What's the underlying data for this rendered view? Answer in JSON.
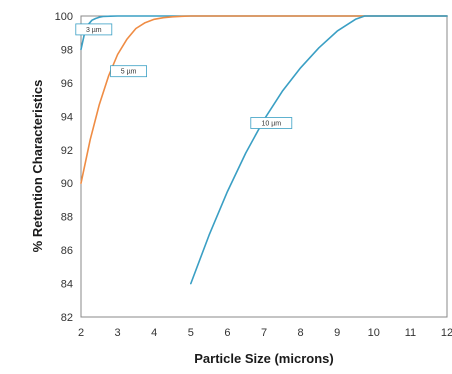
{
  "chart_data": {
    "type": "line",
    "xlabel": "Particle Size (microns)",
    "ylabel": "% Retention Characteristics",
    "xlim": [
      2,
      12
    ],
    "ylim": [
      82,
      100
    ],
    "x_ticks": [
      2,
      3,
      4,
      5,
      6,
      7,
      8,
      9,
      10,
      11,
      12
    ],
    "y_ticks": [
      82,
      84,
      86,
      88,
      90,
      92,
      94,
      96,
      98,
      100
    ],
    "grid": false,
    "series": [
      {
        "name": "3 µm",
        "color": "#3a9fc4",
        "x": [
          2.0,
          2.1,
          2.2,
          2.3,
          2.4,
          2.5,
          2.6,
          2.8,
          3.0,
          12.0
        ],
        "y": [
          98.0,
          99.0,
          99.5,
          99.75,
          99.85,
          99.93,
          99.97,
          99.99,
          100.0,
          100.0
        ]
      },
      {
        "name": "5 µm",
        "color": "#ef8c44",
        "x": [
          2.0,
          2.25,
          2.5,
          2.75,
          3.0,
          3.25,
          3.5,
          3.75,
          4.0,
          4.25,
          4.5,
          4.75,
          5.0,
          12.0
        ],
        "y": [
          90.0,
          92.6,
          94.7,
          96.4,
          97.7,
          98.6,
          99.25,
          99.6,
          99.8,
          99.9,
          99.95,
          99.98,
          100.0,
          100.0
        ]
      },
      {
        "name": "10 µm",
        "color": "#3a9fc4",
        "x": [
          5.0,
          5.5,
          6.0,
          6.5,
          7.0,
          7.5,
          8.0,
          8.5,
          9.0,
          9.5,
          9.75,
          12.0
        ],
        "y": [
          84.0,
          86.9,
          89.5,
          91.8,
          93.8,
          95.5,
          96.9,
          98.1,
          99.1,
          99.8,
          100.0,
          100.0
        ]
      }
    ],
    "annotations": [
      {
        "text": "3 µm",
        "x": 2.35,
        "y": 99.2
      },
      {
        "text": "5 µm",
        "x": 3.3,
        "y": 96.7
      },
      {
        "text": "10 µm",
        "x": 7.2,
        "y": 93.6
      }
    ]
  }
}
